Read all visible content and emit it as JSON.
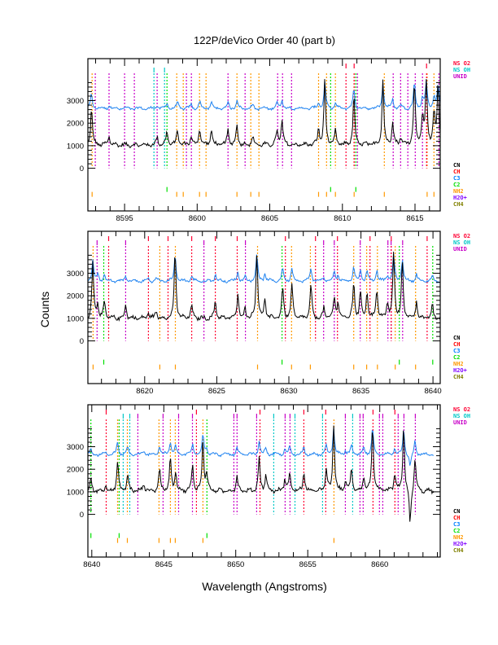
{
  "title": "122P/deVico Order 40 (part b)",
  "xlabel": "Wavelength (Angstroms)",
  "ylabel": "Counts",
  "legend_top": [
    {
      "label": "NS O2",
      "color": "#ff0033"
    },
    {
      "label": "NS OH",
      "color": "#00c8c8"
    },
    {
      "label": "UNID",
      "color": "#c800c8"
    }
  ],
  "legend_bottom": [
    {
      "label": "CN",
      "color": "#000000"
    },
    {
      "label": "CH",
      "color": "#ff0000"
    },
    {
      "label": "C3",
      "color": "#0080ff"
    },
    {
      "label": "C2",
      "color": "#00e000"
    },
    {
      "label": "NH2",
      "color": "#ff9900"
    },
    {
      "label": "H2O+",
      "color": "#8000ff"
    },
    {
      "label": "CH4",
      "color": "#808000"
    }
  ],
  "marker_colors": {
    "ns_o2": "#ff0033",
    "ns_oh": "#00c8c8",
    "unid": "#c800c8",
    "c2": "#00e000",
    "nh2": "#ff9900"
  },
  "chart_data": [
    {
      "type": "line",
      "panel": 1,
      "xlim": [
        8592.47,
        8616.74
      ],
      "ylim": [
        -1890,
        4860
      ],
      "xticks": [
        8595,
        8600,
        8605,
        8610,
        8615
      ],
      "xtick_labels": [
        "8595",
        "8600",
        "8605",
        "8610",
        "8615"
      ],
      "yticks": [
        0,
        1000,
        2000,
        3000
      ],
      "ytick_labels": [
        "0",
        "1000",
        "2000",
        "3000"
      ],
      "spectrum_end": 8616.74,
      "markers": {
        "ns_o2": [
          8610.25,
          8610.81,
          8615.8
        ],
        "ns_oh": [
          8597.02,
          8597.75
        ],
        "unid": [
          8592.98,
          8593.93,
          8595.0,
          8595.67,
          8597.24,
          8599.26,
          8599.6,
          8602.12,
          8603.3,
          8605.54,
          8605.88,
          8606.5,
          8611.04,
          8613.5,
          8614.01,
          8614.51,
          8615.02,
          8615.52,
          8616.65
        ],
        "c2": [
          8597.92,
          8609.19,
          8610.93
        ],
        "nh2": [
          8592.76,
          8598.59,
          8599.04,
          8600.16,
          8600.61,
          8602.74,
          8603.69,
          8604.25,
          8608.36,
          8608.91,
          8609.52,
          8610.81,
          8612.89,
          8615.84,
          8616.31
        ]
      },
      "series": [
        {
          "name": "observed",
          "color": "#000000",
          "baseline": 1035,
          "peaks": [
            [
              8592.72,
              1650
            ],
            [
              8593.93,
              400
            ],
            [
              8597.24,
              350
            ],
            [
              8597.92,
              590
            ],
            [
              8598.64,
              670
            ],
            [
              8599.58,
              400
            ],
            [
              8600.17,
              760
            ],
            [
              8600.98,
              670
            ],
            [
              8602.12,
              670
            ],
            [
              8602.74,
              900
            ],
            [
              8603.82,
              390
            ],
            [
              8605.5,
              650
            ],
            [
              8605.84,
              1090
            ],
            [
              8608.36,
              700
            ],
            [
              8608.79,
              2880
            ],
            [
              8609.52,
              590
            ],
            [
              8610.79,
              2170
            ],
            [
              8612.79,
              2880
            ],
            [
              8613.46,
              1060
            ],
            [
              8614.02,
              350
            ],
            [
              8614.96,
              2800
            ],
            [
              8615.52,
              1290
            ],
            [
              8615.78,
              2880
            ],
            [
              8616.31,
              1410
            ],
            [
              8616.59,
              2650
            ]
          ]
        },
        {
          "name": "comparison",
          "color": "#1e82f0",
          "baseline": 2650,
          "scale": 0.4
        }
      ]
    },
    {
      "type": "line",
      "panel": 2,
      "xlim": [
        8616.06,
        8640.5
      ],
      "ylim": [
        -1890,
        4860
      ],
      "xticks": [
        8620,
        8625,
        8630,
        8635,
        8640
      ],
      "xtick_labels": [
        "8620",
        "8625",
        "8630",
        "8635",
        "8640"
      ],
      "yticks": [
        0,
        1000,
        2000,
        3000
      ],
      "ytick_labels": [
        "0",
        "1000",
        "2000",
        "3000"
      ],
      "spectrum_end": 8640.5,
      "markers": {
        "ns_o2": [
          8617.5,
          8620.26,
          8621.62,
          8623.26,
          8624.9,
          8626.42,
          8629.76,
          8631.85,
          8633.37,
          8635.63,
          8637.1,
          8639.59
        ],
        "ns_oh": [],
        "unid": [
          8616.7,
          8618.68,
          8624.11,
          8626.99,
          8632.41,
          8633.15,
          8634.95,
          8636.87,
          8637.09,
          8637.89
        ],
        "c2": [
          8617.16,
          8629.53,
          8637.66,
          8639.98
        ],
        "nh2": [
          8616.42,
          8621.05,
          8622.13,
          8627.83,
          8630.19,
          8631.49,
          8634.5,
          8635.4,
          8636.14,
          8637.38,
          8638.79
        ]
      },
      "series": [
        {
          "name": "observed",
          "color": "#000000",
          "baseline": 1000,
          "peaks": [
            [
              8616.4,
              2500
            ],
            [
              8616.74,
              700
            ],
            [
              8617.21,
              700
            ],
            [
              8618.68,
              600
            ],
            [
              8620.26,
              270
            ],
            [
              8620.79,
              330
            ],
            [
              8622.11,
              2940
            ],
            [
              8623.26,
              600
            ],
            [
              8624.9,
              800
            ],
            [
              8626.46,
              1060
            ],
            [
              8626.97,
              450
            ],
            [
              8627.78,
              2940
            ],
            [
              8628.34,
              820
            ],
            [
              8629.57,
              1360
            ],
            [
              8630.21,
              1480
            ],
            [
              8631.53,
              1480
            ],
            [
              8632.43,
              450
            ],
            [
              8633.15,
              940
            ],
            [
              8633.41,
              760
            ],
            [
              8634.5,
              1600
            ],
            [
              8634.97,
              1150
            ],
            [
              8635.42,
              1180
            ],
            [
              8636.1,
              1300
            ],
            [
              8636.84,
              700
            ],
            [
              8637.27,
              2940
            ],
            [
              8637.87,
              2500
            ],
            [
              8638.85,
              760
            ],
            [
              8639.96,
              580
            ]
          ]
        },
        {
          "name": "comparison",
          "color": "#1e82f0",
          "baseline": 2650,
          "scale": 0.4
        }
      ]
    },
    {
      "type": "line",
      "panel": 3,
      "xlim": [
        8639.73,
        8664.2
      ],
      "ylim": [
        -1890,
        4860
      ],
      "xticks": [
        8640,
        8645,
        8650,
        8655,
        8660
      ],
      "xtick_labels": [
        "8640",
        "8645",
        "8650",
        "8655",
        "8660"
      ],
      "yticks": [
        0,
        1000,
        2000,
        3000
      ],
      "ytick_labels": [
        "0",
        "1000",
        "2000",
        "3000"
      ],
      "spectrum_end": 8663.77,
      "markers": {
        "ns_o2": [
          8641.0,
          8647.27,
          8651.68,
          8654.73,
          8656.25,
          8659.53,
          8661.05
        ],
        "ns_oh": [
          8642.18,
          8642.64,
          8652.64,
          8654.11,
          8656.03,
          8658.12
        ],
        "unid": [
          8643.2,
          8644.95,
          8646.03,
          8646.99,
          8649.87,
          8650.09,
          8651.45,
          8653.43,
          8653.77,
          8657.61,
          8658.63,
          8658.85,
          8659.98,
          8660.21,
          8661.28,
          8661.68,
          8662.47
        ],
        "c2": [
          8639.94,
          8641.9,
          8648.0
        ],
        "nh2": [
          8641.79,
          8642.47,
          8644.67,
          8645.46,
          8645.8,
          8647.72,
          8656.82
        ]
      },
      "series": [
        {
          "name": "observed",
          "color": "#000000",
          "baseline": 1030,
          "peaks": [
            [
              8639.94,
              520
            ],
            [
              8640.98,
              270
            ],
            [
              8641.79,
              1300
            ],
            [
              8642.49,
              760
            ],
            [
              8643.62,
              360
            ],
            [
              8644.71,
              990
            ],
            [
              8645.46,
              1480
            ],
            [
              8645.82,
              880
            ],
            [
              8647.0,
              1150
            ],
            [
              8647.72,
              2270
            ],
            [
              8647.98,
              790
            ],
            [
              8650.08,
              720
            ],
            [
              8651.62,
              1480
            ],
            [
              8652.09,
              760
            ],
            [
              8653.41,
              570
            ],
            [
              8653.75,
              820
            ],
            [
              8654.73,
              820
            ],
            [
              8656.29,
              960
            ],
            [
              8656.8,
              2960
            ],
            [
              8657.61,
              420
            ],
            [
              8658.03,
              990
            ],
            [
              8658.88,
              640
            ],
            [
              8659.5,
              2960
            ],
            [
              8661.04,
              790
            ],
            [
              8661.66,
              2960
            ],
            [
              8662.11,
              -1550
            ],
            [
              8662.45,
              1570
            ]
          ]
        },
        {
          "name": "comparison",
          "color": "#1e82f0",
          "baseline": 2650,
          "scale": 0.4
        }
      ]
    }
  ]
}
